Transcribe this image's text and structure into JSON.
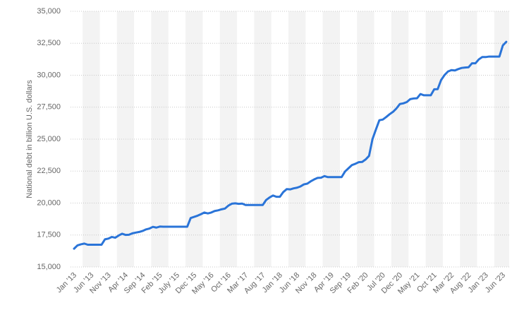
{
  "chart_data": {
    "type": "line",
    "y_label": "National debt in billion U.S. dollars",
    "categories": [
      "Jan '13",
      null,
      null,
      null,
      null,
      "Jun '13",
      null,
      null,
      null,
      null,
      "Nov '13",
      null,
      null,
      null,
      null,
      "Apr '14",
      null,
      null,
      null,
      null,
      "Sep '14",
      null,
      null,
      null,
      null,
      "Feb '15",
      null,
      null,
      null,
      null,
      "July '15",
      null,
      null,
      null,
      null,
      "Dec '15",
      null,
      null,
      null,
      null,
      "May '16",
      null,
      null,
      null,
      null,
      "Oct '16",
      null,
      null,
      null,
      null,
      "Mar '17",
      null,
      null,
      null,
      null,
      "Aug '17",
      null,
      null,
      null,
      null,
      "Jan '18",
      null,
      null,
      null,
      null,
      "Jun '18",
      null,
      null,
      null,
      null,
      "Nov '18",
      null,
      null,
      null,
      null,
      "Apr '19",
      null,
      null,
      null,
      null,
      "Sep '19",
      null,
      null,
      null,
      null,
      "Feb '20",
      null,
      null,
      null,
      null,
      "Jul '20",
      null,
      null,
      null,
      null,
      "Dec '20",
      null,
      null,
      null,
      null,
      "May '21",
      null,
      null,
      null,
      null,
      "Oct '21",
      null,
      null,
      null,
      null,
      "Mar '22",
      null,
      null,
      null,
      null,
      "Aug '22",
      null,
      null,
      null,
      null,
      "Jan '23",
      null,
      null,
      null,
      null,
      "Jun '23",
      null
    ],
    "series": [
      {
        "color": "#2a74d8",
        "values": [
          16430,
          16690,
          16770,
          16830,
          16740,
          16740,
          16740,
          16740,
          16740,
          17160,
          17220,
          17350,
          17290,
          17460,
          17600,
          17510,
          17520,
          17630,
          17690,
          17740,
          17820,
          17940,
          18010,
          18140,
          18080,
          18160,
          18150,
          18150,
          18150,
          18150,
          18150,
          18150,
          18150,
          18150,
          18830,
          18920,
          19010,
          19130,
          19260,
          19190,
          19260,
          19380,
          19430,
          19510,
          19570,
          19800,
          19950,
          19980,
          19940,
          19960,
          19850,
          19850,
          19850,
          19850,
          19850,
          19850,
          20240,
          20440,
          20590,
          20490,
          20490,
          20860,
          21090,
          21070,
          21150,
          21200,
          21300,
          21460,
          21520,
          21700,
          21850,
          21970,
          21980,
          22110,
          22030,
          22030,
          22030,
          22030,
          22030,
          22470,
          22720,
          22970,
          23070,
          23200,
          23220,
          23410,
          23690,
          25000,
          25750,
          26480,
          26530,
          26730,
          26950,
          27140,
          27410,
          27750,
          27800,
          27900,
          28130,
          28180,
          28200,
          28530,
          28430,
          28430,
          28430,
          28900,
          28910,
          29620,
          30010,
          30290,
          30400,
          30370,
          30480,
          30570,
          30600,
          30620,
          30930,
          30930,
          31240,
          31420,
          31420,
          31460,
          31460,
          31460,
          31460,
          32330,
          32610
        ]
      }
    ],
    "ylim": [
      15000,
      35000
    ],
    "yticks": [
      {
        "value": 15000,
        "label": "15,000"
      },
      {
        "value": 17500,
        "label": "17,500"
      },
      {
        "value": 20000,
        "label": "20,000"
      },
      {
        "value": 22500,
        "label": "22,500"
      },
      {
        "value": 25000,
        "label": "25,000"
      },
      {
        "value": 27500,
        "label": "27,500"
      },
      {
        "value": 30000,
        "label": "30,000"
      },
      {
        "value": 32500,
        "label": "32,500"
      },
      {
        "value": 35000,
        "label": "35,000"
      }
    ],
    "grid": true
  }
}
